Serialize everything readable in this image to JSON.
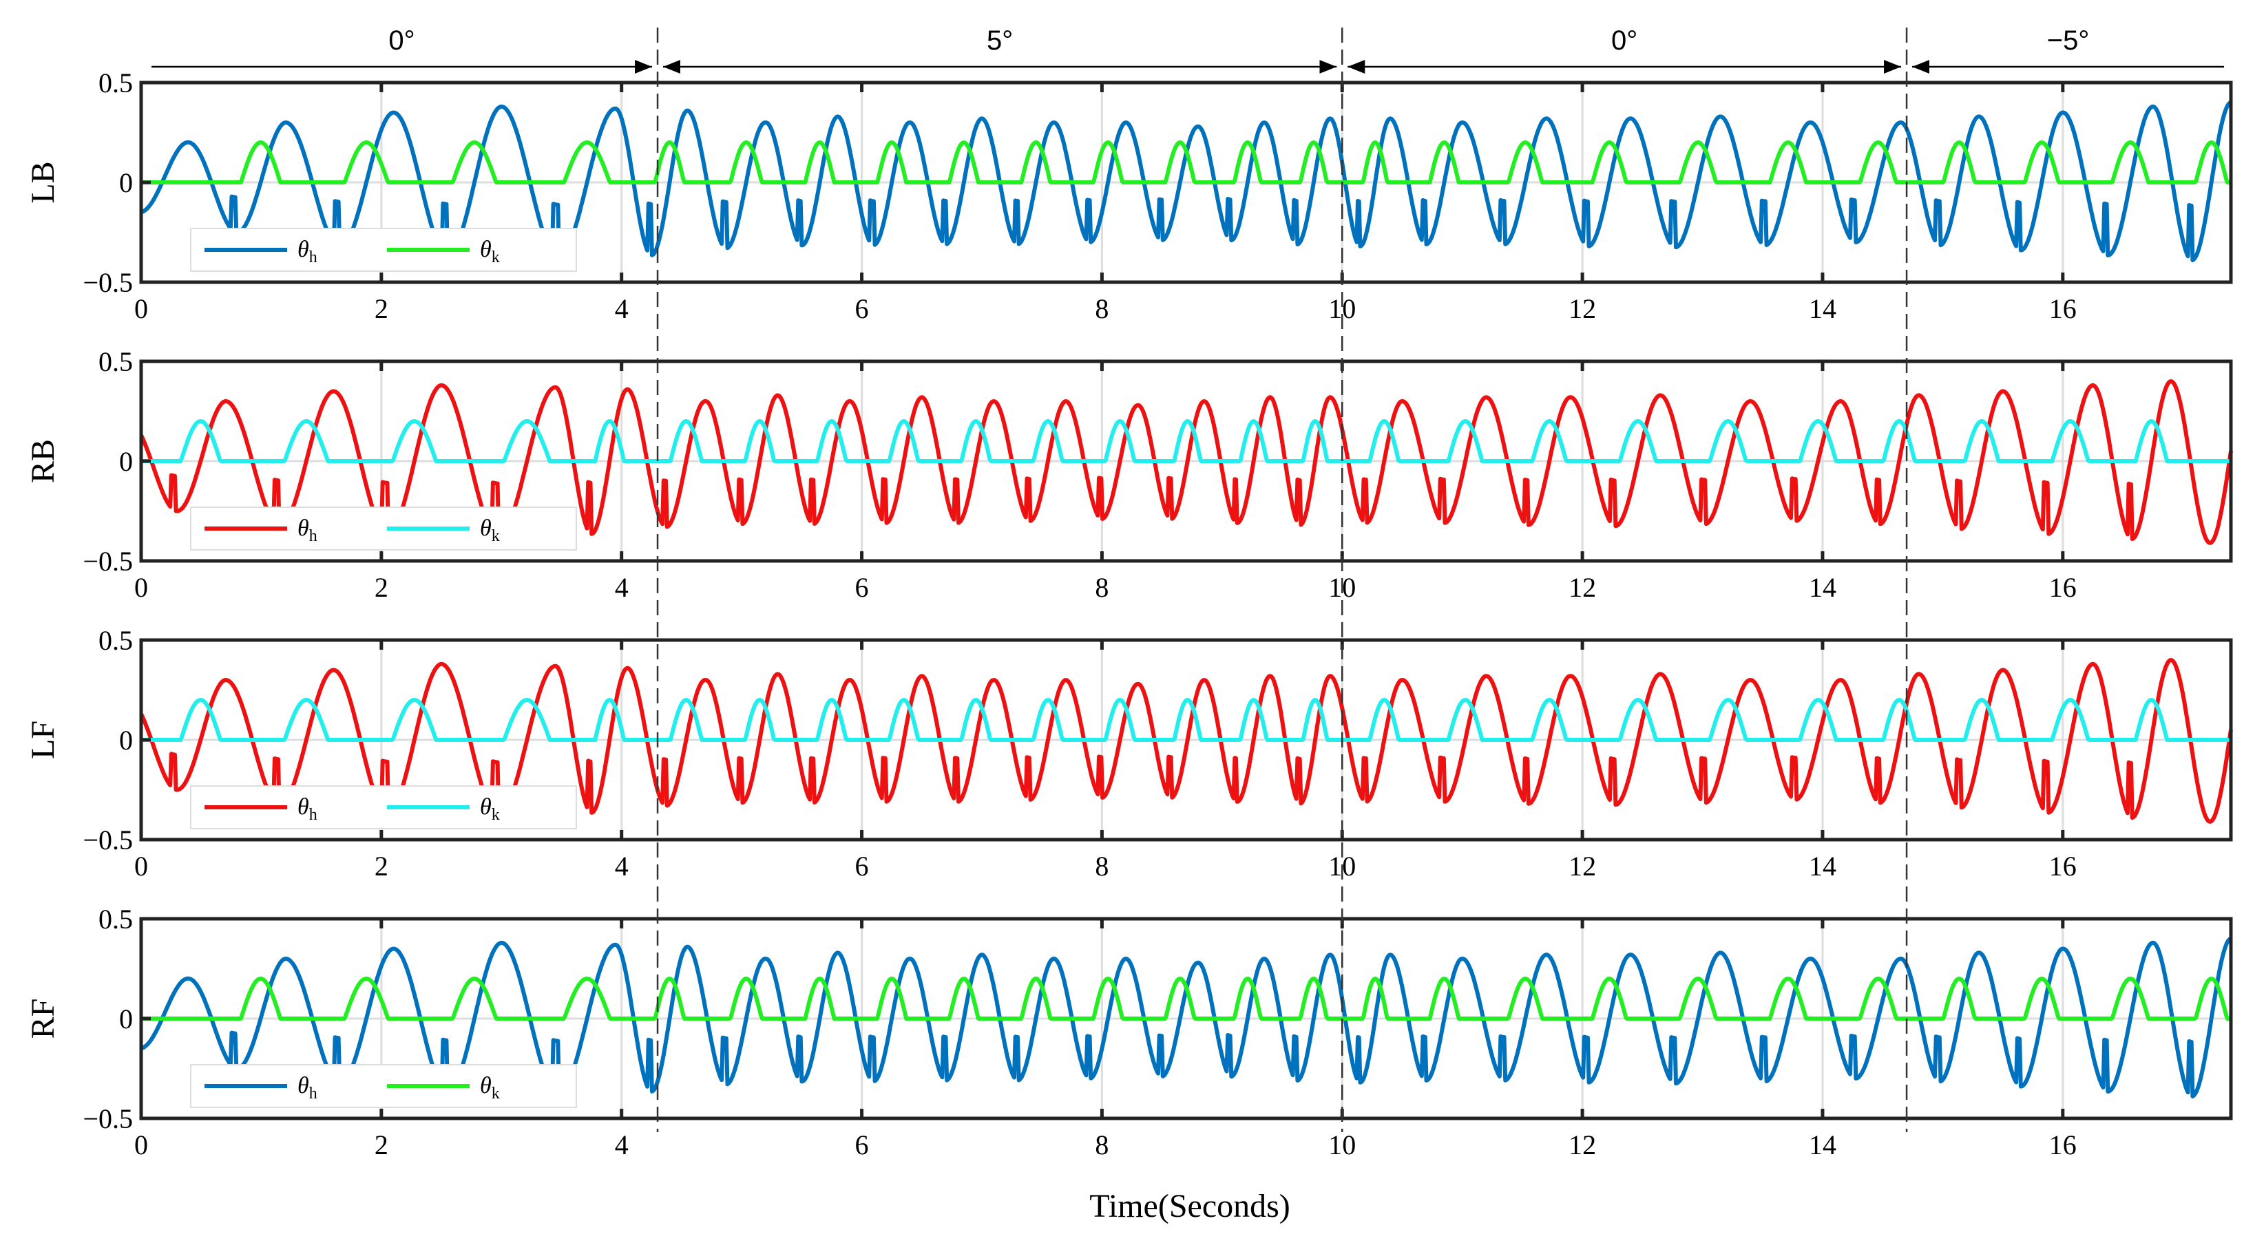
{
  "chart_data": {
    "type": "line",
    "xlabel": "Time(Seconds)",
    "xlim": [
      0,
      17.4
    ],
    "xticks": [
      0,
      2,
      4,
      6,
      8,
      10,
      12,
      14,
      16
    ],
    "xtick_labels": [
      "0",
      "2",
      "4",
      "6",
      "8",
      "10",
      "12",
      "14",
      "16"
    ],
    "ylim": [
      -0.5,
      0.5
    ],
    "yticks": [
      0.5,
      0,
      -0.5
    ],
    "ytick_labels": [
      "0.5",
      "0",
      "−0.5"
    ],
    "grid": "vertical lines at even seconds",
    "segments": [
      {
        "label": "0°",
        "start": 0,
        "end": 4.3
      },
      {
        "label": "5°",
        "start": 4.3,
        "end": 10.0
      },
      {
        "label": "0°",
        "start": 10.0,
        "end": 14.7
      },
      {
        "label": "−5°",
        "start": 14.7,
        "end": 17.4
      }
    ],
    "segment_boundaries": [
      4.3,
      10.0,
      14.7
    ],
    "panels": [
      {
        "ylabel": "LB",
        "legend": [
          "θh",
          "θk"
        ],
        "series": [
          {
            "name": "θh",
            "color": "#0072BD",
            "kind": "hip",
            "phase": 0
          },
          {
            "name": "θk",
            "color": "#22EE22",
            "kind": "knee",
            "phase": 0
          }
        ]
      },
      {
        "ylabel": "RB",
        "legend": [
          "θh",
          "θk"
        ],
        "series": [
          {
            "name": "θh",
            "color": "#EE1111",
            "kind": "hip",
            "phase": 0.5
          },
          {
            "name": "θk",
            "color": "#22EEEE",
            "kind": "knee",
            "phase": 0.5
          }
        ]
      },
      {
        "ylabel": "LF",
        "legend": [
          "θh",
          "θk"
        ],
        "series": [
          {
            "name": "θh",
            "color": "#EE1111",
            "kind": "hip",
            "phase": 0.5
          },
          {
            "name": "θk",
            "color": "#22EEEE",
            "kind": "knee",
            "phase": 0.5
          }
        ]
      },
      {
        "ylabel": "RF",
        "legend": [
          "θh",
          "θk"
        ],
        "series": [
          {
            "name": "θh",
            "color": "#0072BD",
            "kind": "hip",
            "phase": 0
          },
          {
            "name": "θk",
            "color": "#22EE22",
            "kind": "knee",
            "phase": 0
          }
        ]
      }
    ],
    "signal_model": {
      "hip_peak_times": [
        0.38,
        1.2,
        2.1,
        3.0,
        3.95,
        4.55,
        5.2,
        5.8,
        6.4,
        7.0,
        7.6,
        8.2,
        8.8,
        9.35,
        9.9,
        10.4,
        11.0,
        11.7,
        12.4,
        13.15,
        13.9,
        14.65,
        15.3,
        16.0,
        16.75,
        17.4
      ],
      "hip_amplitude": [
        0.2,
        0.3,
        0.35,
        0.38,
        0.37,
        0.36,
        0.3,
        0.33,
        0.3,
        0.32,
        0.3,
        0.3,
        0.28,
        0.3,
        0.32,
        0.32,
        0.3,
        0.32,
        0.32,
        0.33,
        0.3,
        0.3,
        0.33,
        0.35,
        0.38,
        0.4
      ],
      "knee_peak": 0.2
    }
  }
}
